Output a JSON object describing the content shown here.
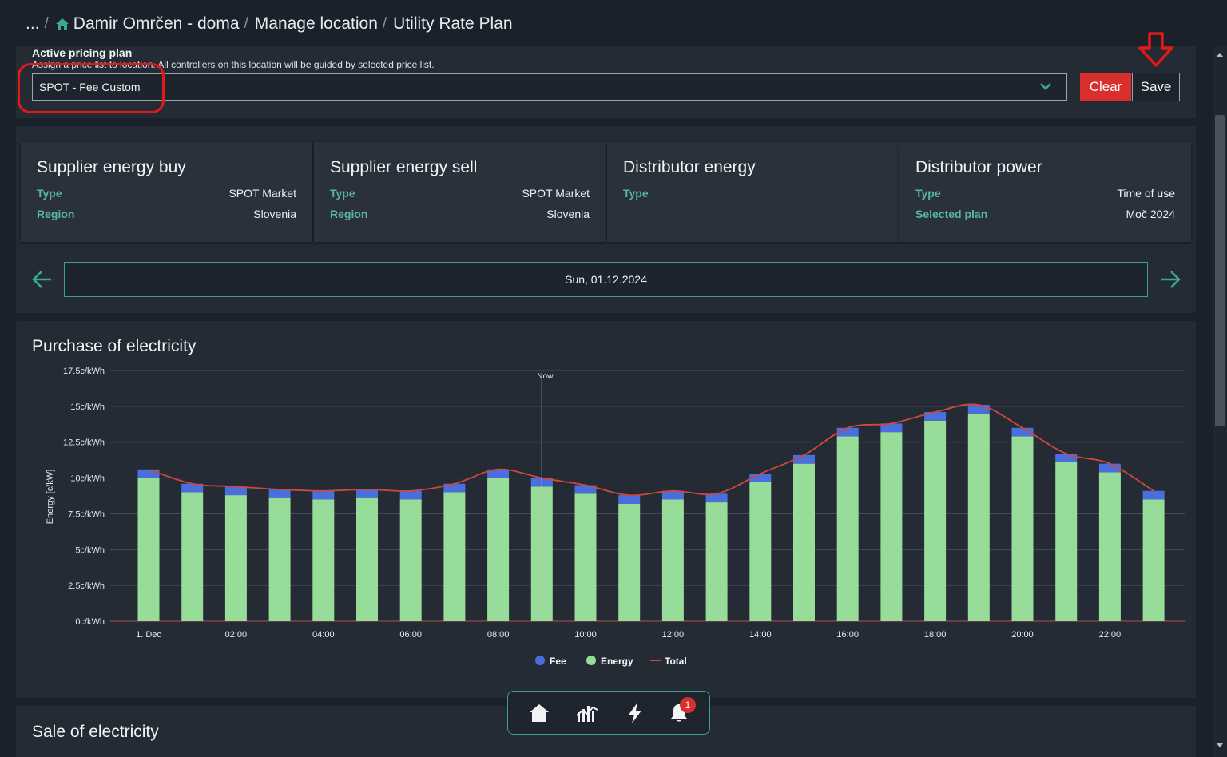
{
  "breadcrumb": {
    "ellipsis": "...",
    "items": [
      "Damir Omrčen - doma",
      "Manage location",
      "Utility Rate Plan"
    ]
  },
  "pricing_plan": {
    "title": "Active pricing plan",
    "subtitle": "Assign a price list to location. All controllers on this location will be guided by selected price list.",
    "selected": "SPOT - Fee Custom",
    "clear_label": "Clear",
    "save_label": "Save"
  },
  "cards": [
    {
      "title": "Supplier energy buy",
      "rows": [
        {
          "key": "Type",
          "value": "SPOT Market"
        },
        {
          "key": "Region",
          "value": "Slovenia"
        }
      ]
    },
    {
      "title": "Supplier energy sell",
      "rows": [
        {
          "key": "Type",
          "value": "SPOT Market"
        },
        {
          "key": "Region",
          "value": "Slovenia"
        }
      ]
    },
    {
      "title": "Distributor energy",
      "rows": [
        {
          "key": "Type",
          "value": ""
        }
      ]
    },
    {
      "title": "Distributor power",
      "rows": [
        {
          "key": "Type",
          "value": "Time of use"
        },
        {
          "key": "Selected plan",
          "value": "Moč 2024"
        }
      ]
    }
  ],
  "date_nav": {
    "date": "Sun, 01.12.2024"
  },
  "purchase": {
    "title": "Purchase of electricity"
  },
  "sale": {
    "title": "Sale of electricity"
  },
  "chart_data": {
    "type": "bar",
    "stacked": true,
    "ylabel": "Energy [c/kW]",
    "yunit": "c/kWh",
    "ylim": [
      0,
      17.5
    ],
    "yticks": [
      0,
      2.5,
      5,
      7.5,
      10,
      12.5,
      15,
      17.5
    ],
    "ytick_labels": [
      "0c/kWh",
      "2.5c/kWh",
      "5c/kWh",
      "7.5c/kWh",
      "10c/kWh",
      "12.5c/kWh",
      "15c/kWh",
      "17.5c/kWh"
    ],
    "xtick_labels": [
      "1. Dec",
      "02:00",
      "04:00",
      "06:00",
      "08:00",
      "10:00",
      "12:00",
      "14:00",
      "16:00",
      "18:00",
      "20:00",
      "22:00"
    ],
    "xtick_hours": [
      0,
      2,
      4,
      6,
      8,
      10,
      12,
      14,
      16,
      18,
      20,
      22
    ],
    "hours": [
      0,
      1,
      2,
      3,
      4,
      5,
      6,
      7,
      8,
      9,
      10,
      11,
      12,
      13,
      14,
      15,
      16,
      17,
      18,
      19,
      20,
      21,
      22,
      23
    ],
    "now_label": "Now",
    "now_hour": 9,
    "series": [
      {
        "name": "Energy",
        "color": "#98dc9a",
        "values": [
          10.0,
          9.0,
          8.8,
          8.6,
          8.5,
          8.6,
          8.5,
          9.0,
          10.0,
          9.4,
          8.9,
          8.2,
          8.5,
          8.3,
          9.7,
          11.0,
          12.9,
          13.2,
          14.0,
          14.5,
          12.9,
          11.1,
          10.4,
          8.5
        ]
      },
      {
        "name": "Fee",
        "color": "#4a6fdc",
        "values": [
          0.6,
          0.6,
          0.6,
          0.6,
          0.6,
          0.6,
          0.6,
          0.6,
          0.6,
          0.6,
          0.6,
          0.6,
          0.6,
          0.6,
          0.6,
          0.6,
          0.6,
          0.6,
          0.6,
          0.6,
          0.6,
          0.6,
          0.6,
          0.6
        ]
      },
      {
        "name": "Total",
        "color": "#d0473d",
        "type": "line",
        "values": [
          10.6,
          9.6,
          9.4,
          9.2,
          9.1,
          9.2,
          9.1,
          9.6,
          10.6,
          10.0,
          9.5,
          8.8,
          9.1,
          8.9,
          10.3,
          11.6,
          13.5,
          13.8,
          14.6,
          15.1,
          13.5,
          11.7,
          11.0,
          9.1
        ]
      }
    ],
    "legend": [
      "Fee",
      "Energy",
      "Total"
    ],
    "legend_position": "bottom"
  },
  "nav": {
    "notification_count": "1"
  },
  "colors": {
    "accent": "#3a9e90",
    "danger": "#d9302d",
    "label": "#58b4a6"
  }
}
